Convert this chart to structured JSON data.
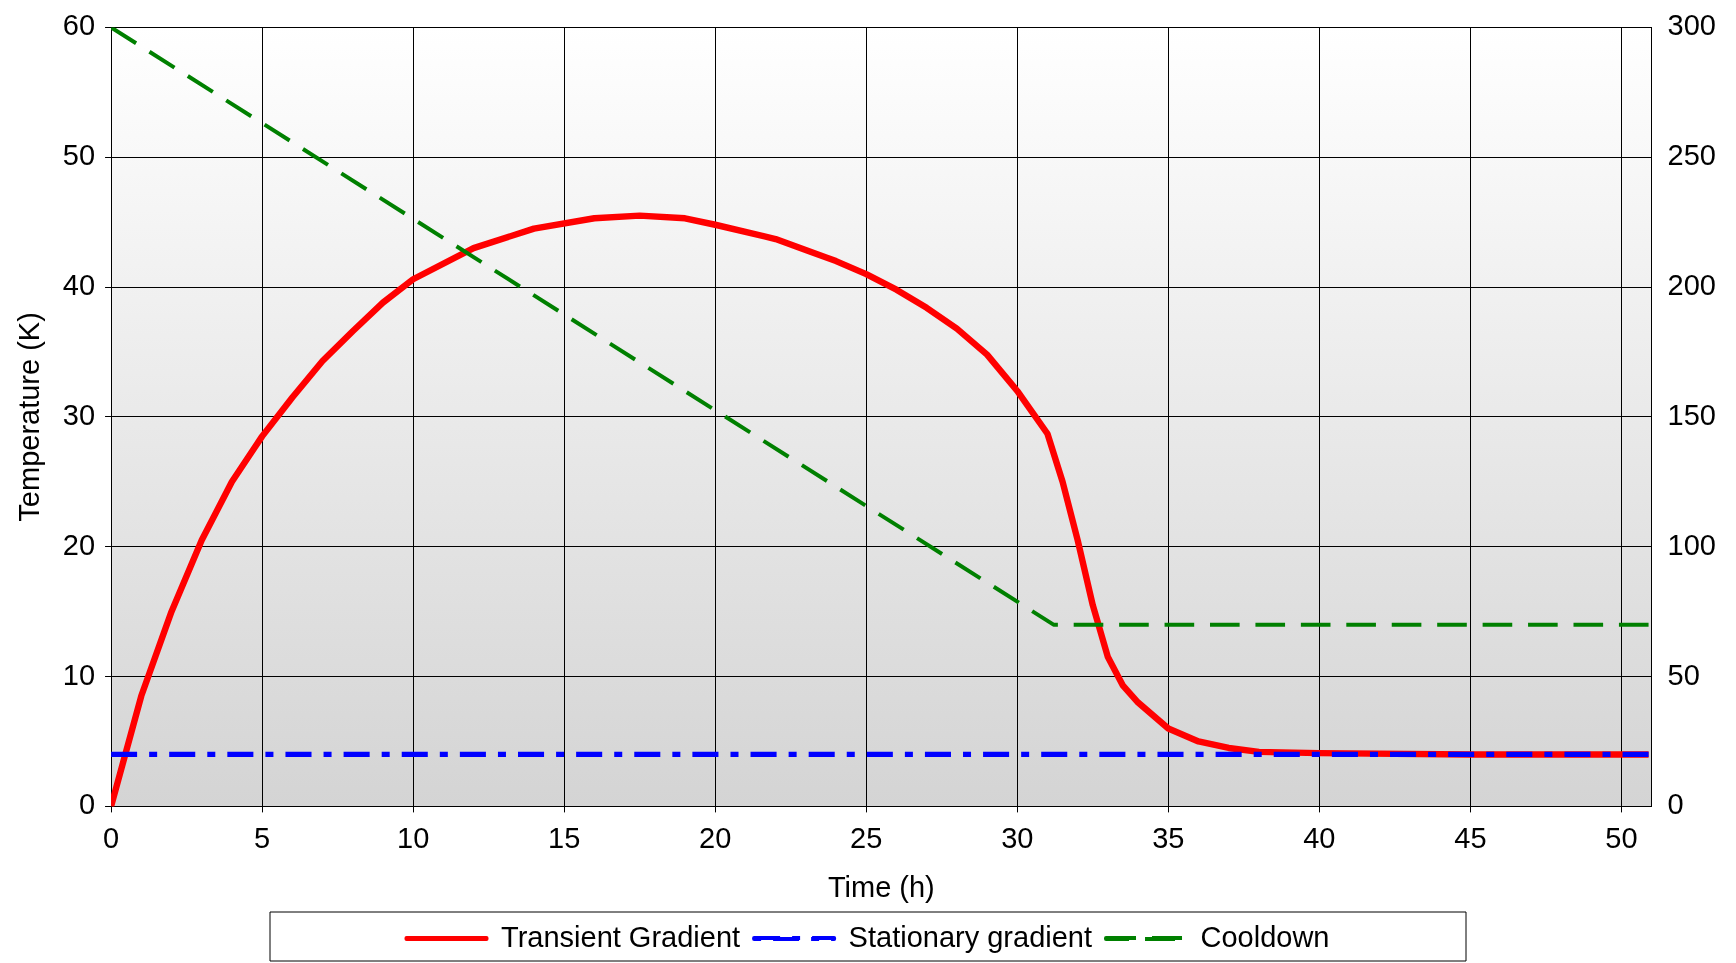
{
  "chart_data": {
    "type": "line",
    "xlabel": "Time (h)",
    "ylabel": "Temperature (K)",
    "xlim": [
      0,
      51
    ],
    "xticks": [
      0,
      5,
      10,
      15,
      20,
      25,
      30,
      35,
      40,
      45,
      50
    ],
    "ylim": [
      0,
      60
    ],
    "yticks": [
      0,
      10,
      20,
      30,
      40,
      50,
      60
    ],
    "y2lim": [
      0,
      300
    ],
    "y2ticks": [
      0,
      50,
      100,
      150,
      200,
      250,
      300
    ],
    "grid": true,
    "legend": "bottom",
    "marker": "none",
    "series": [
      {
        "name": "Transient Gradient",
        "color": "#ff0000",
        "line_style": "solid",
        "x": [
          0,
          1,
          2,
          3,
          4,
          5,
          6,
          7,
          8,
          9,
          10,
          12,
          14,
          16,
          17.5,
          19,
          20,
          22,
          24,
          25,
          26,
          27,
          28,
          29,
          30,
          31,
          31.5,
          32,
          32.5,
          33,
          33.5,
          34,
          35,
          36,
          37,
          38,
          40,
          45,
          50.9
        ],
        "values": [
          0,
          8.5,
          15,
          20.5,
          25,
          28.5,
          31.5,
          34.3,
          36.6,
          38.8,
          40.6,
          43,
          44.5,
          45.3,
          45.5,
          45.3,
          44.8,
          43.7,
          42,
          41,
          39.8,
          38.4,
          36.8,
          34.8,
          32,
          28.7,
          25,
          20.5,
          15.5,
          11.5,
          9.3,
          8,
          6,
          5,
          4.5,
          4.2,
          4.1,
          4,
          4
        ]
      },
      {
        "name": "Stationary gradient",
        "color": "#0000ff",
        "line_style": "dashdot",
        "x": [
          0,
          50.9
        ],
        "values": [
          4,
          4
        ]
      },
      {
        "name": "Cooldown",
        "color": "#008000",
        "line_style": "dashed",
        "axis": "y2",
        "x": [
          0,
          31.2,
          50.9
        ],
        "values": [
          300,
          70,
          70
        ]
      }
    ]
  }
}
